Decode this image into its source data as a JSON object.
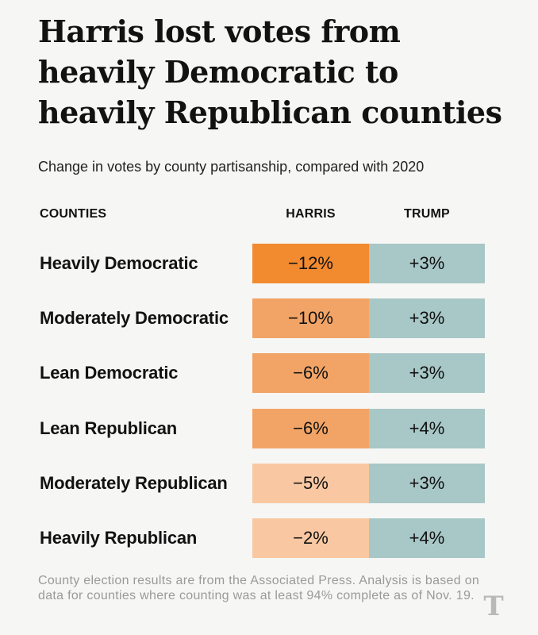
{
  "title": "Harris lost votes from heavily Democratic to heavily Republican counties",
  "subtitle": "Change in votes by county partisanship, compared with 2020",
  "headers": {
    "counties": "COUNTIES",
    "harris": "HARRIS",
    "trump": "TRUMP"
  },
  "note": "County election results are from the Associated Press. Analysis is based on data for counties where counting was at least 94% complete as of Nov. 19.",
  "logo": "T",
  "colors": {
    "harris_scale": [
      "#f28a30",
      "#f2a466",
      "#f9c8a2"
    ],
    "trump": "#a8c7c7",
    "background": "#f6f6f4"
  },
  "chart_data": {
    "type": "table",
    "columns": [
      "COUNTIES",
      "HARRIS",
      "TRUMP"
    ],
    "rows": [
      {
        "county": "Heavily Democratic",
        "harris": -12,
        "trump": 3,
        "harris_label": "−12%",
        "trump_label": "+3%"
      },
      {
        "county": "Moderately Democratic",
        "harris": -10,
        "trump": 3,
        "harris_label": "−10%",
        "trump_label": "+3%"
      },
      {
        "county": "Lean Democratic",
        "harris": -6,
        "trump": 3,
        "harris_label": "−6%",
        "trump_label": "+3%"
      },
      {
        "county": "Lean Republican",
        "harris": -6,
        "trump": 4,
        "harris_label": "−6%",
        "trump_label": "+4%"
      },
      {
        "county": "Moderately Republican",
        "harris": -5,
        "trump": 3,
        "harris_label": "−5%",
        "trump_label": "+3%"
      },
      {
        "county": "Heavily Republican",
        "harris": -2,
        "trump": 4,
        "harris_label": "−2%",
        "trump_label": "+4%"
      }
    ]
  }
}
